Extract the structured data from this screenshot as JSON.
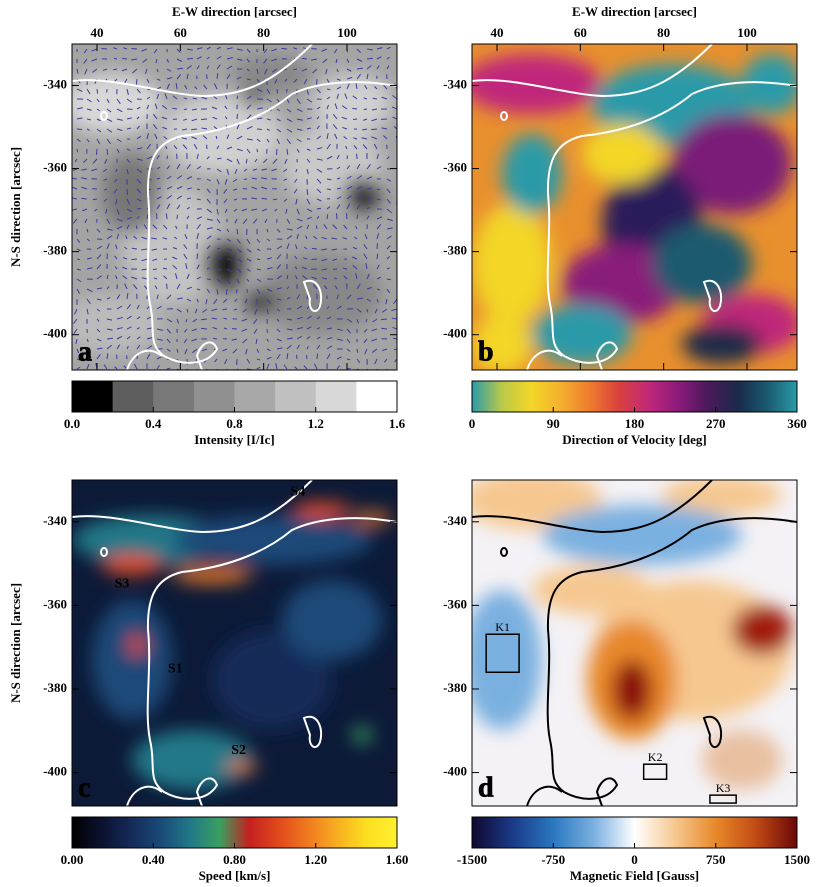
{
  "chart_data": [
    {
      "type": "image",
      "panel_label": "a",
      "xlabel": "E-W direction [arcsec]",
      "ylabel": "N-S direction [arcsec]",
      "xlim": [
        34,
        112
      ],
      "ylim": [
        -408.5,
        -330
      ],
      "xticks": [
        40,
        60,
        80,
        100
      ],
      "yticks": [
        -340,
        -360,
        -380,
        -400
      ],
      "contour_color": "#ffffff",
      "colorbar": {
        "label": "Intensity [I/Ic]",
        "lim": [
          0,
          1.6
        ],
        "discrete": true,
        "colors": [
          "#000000",
          "#5e5e5e",
          "#787878",
          "#909090",
          "#a8a8a8",
          "#c0c0c0",
          "#d8d8d8",
          "#ffffff"
        ],
        "ticks": [
          {
            "value": 0,
            "label": "0.0"
          },
          0.4,
          0.8,
          1.2,
          1.6
        ]
      }
    },
    {
      "type": "image",
      "panel_label": "b",
      "xlabel": "E-W direction [arcsec]",
      "xlim": [
        34,
        112
      ],
      "ylim": [
        -408.5,
        -330
      ],
      "xticks": [
        40,
        60,
        80,
        100
      ],
      "yticks": [
        -340,
        -360,
        -380,
        -400
      ],
      "contour_color": "#ffffff",
      "colorbar": {
        "label": "Direction of Velocity [deg]",
        "lim": [
          0,
          360
        ],
        "discrete": false,
        "colors": [
          "#2a9aa8",
          "#b9c94a",
          "#f3d628",
          "#f4b02e",
          "#ef7a2e",
          "#d8403e",
          "#c0287a",
          "#8a1a7a",
          "#4a1a5a",
          "#1a2a4a",
          "#1a5a70",
          "#2a9aa8"
        ],
        "ticks": [
          0,
          90,
          180,
          270,
          360
        ]
      }
    },
    {
      "type": "image",
      "panel_label": "c",
      "ylabel": "N-S direction [arcsec]",
      "xlim": [
        34,
        112
      ],
      "ylim": [
        -408,
        -330
      ],
      "yticks": [
        -340,
        -360,
        -380,
        -400
      ],
      "contour_color": "#ffffff",
      "annotations": [
        {
          "text": "S4",
          "x": 88.2,
          "y": -332.9
        },
        {
          "text": "S3",
          "x": 46,
          "y": -355
        },
        {
          "text": "S1",
          "x": 58.8,
          "y": -375.3
        },
        {
          "text": "S2",
          "x": 74,
          "y": -394.8
        }
      ],
      "colorbar": {
        "label": "Speed [km/s]",
        "lim": [
          0,
          1.6
        ],
        "discrete": false,
        "colors": [
          "#000000",
          "#0c1230",
          "#142a58",
          "#1a4a78",
          "#207888",
          "#3aa060",
          "#c42020",
          "#e04a1a",
          "#f07a20",
          "#f8b020",
          "#fce020",
          "#fff030"
        ],
        "ticks": [
          {
            "value": 0,
            "label": "0.00"
          },
          {
            "value": 0.4,
            "label": "0.40"
          },
          {
            "value": 0.8,
            "label": "0.80"
          },
          {
            "value": 1.2,
            "label": "1.20"
          },
          {
            "value": 1.6,
            "label": "1.60"
          }
        ]
      }
    },
    {
      "type": "image",
      "panel_label": "d",
      "xlim": [
        34,
        112
      ],
      "ylim": [
        -408,
        -330
      ],
      "yticks": [
        -340,
        -360,
        -380,
        -400
      ],
      "contour_color": "#000000",
      "boxes": [
        {
          "label": "K1",
          "x": [
            37.4,
            45.3
          ],
          "y": [
            -376,
            -366.9
          ]
        },
        {
          "label": "K2",
          "x": [
            75.2,
            80.7
          ],
          "y": [
            -401.6,
            -398
          ]
        },
        {
          "label": "K3",
          "x": [
            91.1,
            97.4
          ],
          "y": [
            -407.3,
            -405.4
          ]
        }
      ],
      "colorbar": {
        "label": "Magnetic Field [Gauss]",
        "lim": [
          -1500,
          1500
        ],
        "discrete": false,
        "colors": [
          "#100830",
          "#1a3a88",
          "#2a78c0",
          "#7ab0e0",
          "#ffffff",
          "#f6c890",
          "#e8882a",
          "#c04a14",
          "#6a0808"
        ],
        "ticks": [
          -1500,
          -750,
          0,
          750,
          1500
        ]
      }
    }
  ]
}
